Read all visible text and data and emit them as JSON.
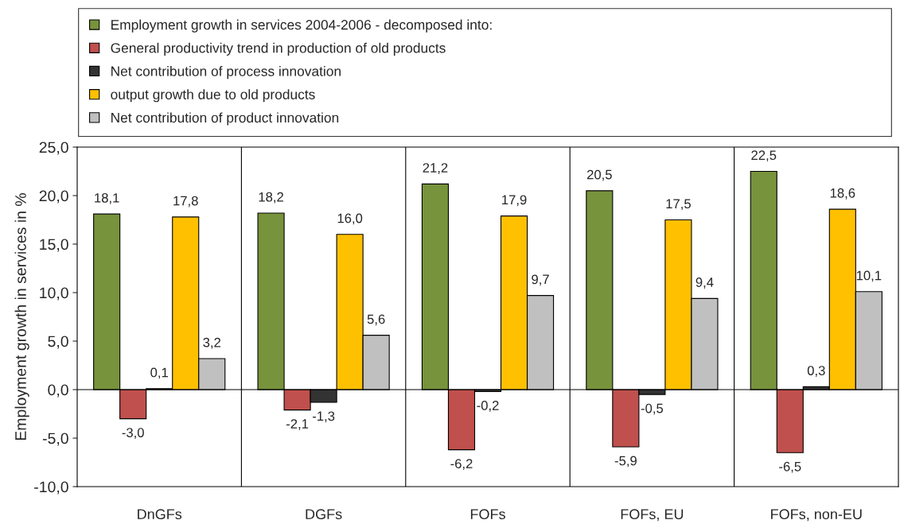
{
  "chart_data": {
    "type": "bar",
    "ylabel": "Employment growth in services in %",
    "categories": [
      "DnGFs",
      "DGFs",
      "FOFs",
      "FOFs, EU",
      "FOFs, non-EU"
    ],
    "series": [
      {
        "name": "Employment growth in services 2004-2006 - decomposed into:",
        "color": "#77933c",
        "values": [
          18.1,
          18.2,
          21.2,
          20.5,
          22.5
        ],
        "value_labels": [
          "18,1",
          "18,2",
          "21,2",
          "20,5",
          "22,5"
        ]
      },
      {
        "name": "General productivity trend in production of old products",
        "color": "#c0504d",
        "values": [
          -3.0,
          -2.1,
          -6.2,
          -5.9,
          -6.5
        ],
        "value_labels": [
          "-3,0",
          "-2,1",
          "-6,2",
          "-5,9",
          "-6,5"
        ]
      },
      {
        "name": "Net contribution of process innovation",
        "color": "#333333",
        "values": [
          0.1,
          -1.3,
          -0.2,
          -0.5,
          0.3
        ],
        "value_labels": [
          "0,1",
          "-1,3",
          "-0,2",
          "-0,5",
          "0,3"
        ]
      },
      {
        "name": "output growth due to old products",
        "color": "#ffc000",
        "values": [
          17.8,
          16.0,
          17.9,
          17.5,
          18.6
        ],
        "value_labels": [
          "17,8",
          "16,0",
          "17,9",
          "17,5",
          "18,6"
        ]
      },
      {
        "name": "Net contribution of product innovation",
        "color": "#c0c0c0",
        "values": [
          3.2,
          5.6,
          9.7,
          9.4,
          10.1
        ],
        "value_labels": [
          "3,2",
          "5,6",
          "9,7",
          "9,4",
          "10,1"
        ]
      }
    ],
    "ylim": [
      -10,
      25
    ],
    "yticks": [
      {
        "value": -10,
        "label": "-10,0"
      },
      {
        "value": -5,
        "label": "-5,0"
      },
      {
        "value": 0,
        "label": "0,0"
      },
      {
        "value": 5,
        "label": "5,0"
      },
      {
        "value": 10,
        "label": "10,0"
      },
      {
        "value": 15,
        "label": "15,0"
      },
      {
        "value": 20,
        "label": "20,0"
      },
      {
        "value": 25,
        "label": "25,0"
      }
    ],
    "ref_lines": [
      {
        "axis": "y",
        "value": 0,
        "color": "#000000"
      }
    ],
    "grid": "x",
    "legend": "top"
  }
}
